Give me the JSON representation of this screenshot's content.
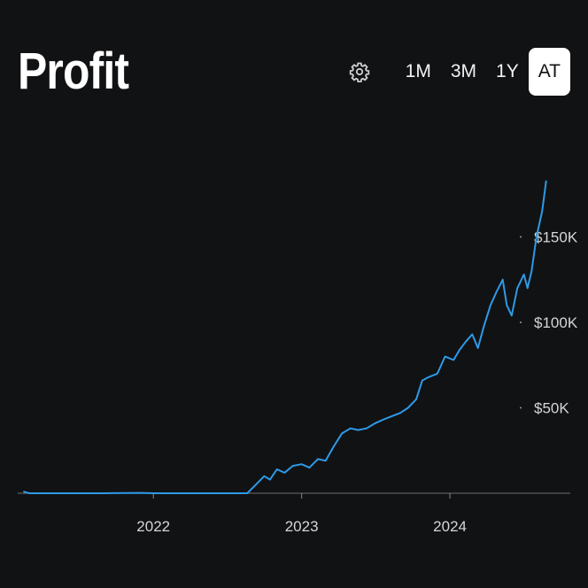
{
  "header": {
    "title": "Profit",
    "settings_icon": "gear-icon",
    "ranges": [
      {
        "label": "1M",
        "active": false
      },
      {
        "label": "3M",
        "active": false
      },
      {
        "label": "1Y",
        "active": false
      },
      {
        "label": "AT",
        "active": true
      }
    ]
  },
  "colors": {
    "background": "#111214",
    "line": "#2e9ae8",
    "baseline": "#6f6f6f",
    "text": "#ffffff"
  },
  "chart_data": {
    "type": "line",
    "title": "",
    "xlabel": "",
    "ylabel": "",
    "x_tick_labels": [
      "2022",
      "2023",
      "2024"
    ],
    "y_tick_labels": [
      "$50K",
      "$100K",
      "$150K"
    ],
    "y_ticks": [
      50000,
      100000,
      150000
    ],
    "ylim": [
      0,
      185000
    ],
    "xlim": [
      "2021-02-01",
      "2024-09-01"
    ],
    "y_axis_position": "right",
    "grid": false,
    "series": [
      {
        "color": "#2e9ae8",
        "points": [
          [
            "2021-02-15",
            1000
          ],
          [
            "2021-03-01",
            0
          ],
          [
            "2021-06-01",
            0
          ],
          [
            "2021-09-01",
            0
          ],
          [
            "2021-12-01",
            200
          ],
          [
            "2022-01-01",
            0
          ],
          [
            "2022-04-01",
            0
          ],
          [
            "2022-07-01",
            0
          ],
          [
            "2022-08-20",
            0
          ],
          [
            "2022-09-10",
            5000
          ],
          [
            "2022-10-01",
            10000
          ],
          [
            "2022-10-15",
            8000
          ],
          [
            "2022-11-01",
            14000
          ],
          [
            "2022-11-20",
            12000
          ],
          [
            "2022-12-10",
            16000
          ],
          [
            "2023-01-01",
            17000
          ],
          [
            "2023-01-20",
            15000
          ],
          [
            "2023-02-10",
            20000
          ],
          [
            "2023-03-01",
            19000
          ],
          [
            "2023-03-20",
            27000
          ],
          [
            "2023-04-10",
            35000
          ],
          [
            "2023-05-01",
            38000
          ],
          [
            "2023-05-20",
            37000
          ],
          [
            "2023-06-10",
            38000
          ],
          [
            "2023-07-01",
            41000
          ],
          [
            "2023-07-20",
            43000
          ],
          [
            "2023-08-10",
            45000
          ],
          [
            "2023-09-01",
            47000
          ],
          [
            "2023-09-20",
            50000
          ],
          [
            "2023-10-10",
            55000
          ],
          [
            "2023-10-25",
            66000
          ],
          [
            "2023-11-10",
            68000
          ],
          [
            "2023-12-01",
            70000
          ],
          [
            "2023-12-20",
            80000
          ],
          [
            "2024-01-10",
            78000
          ],
          [
            "2024-01-25",
            84000
          ],
          [
            "2024-02-10",
            89000
          ],
          [
            "2024-02-25",
            93000
          ],
          [
            "2024-03-10",
            85000
          ],
          [
            "2024-03-25",
            98000
          ],
          [
            "2024-04-10",
            110000
          ],
          [
            "2024-04-25",
            118000
          ],
          [
            "2024-05-10",
            125000
          ],
          [
            "2024-05-20",
            110000
          ],
          [
            "2024-06-01",
            104000
          ],
          [
            "2024-06-15",
            120000
          ],
          [
            "2024-07-01",
            128000
          ],
          [
            "2024-07-10",
            120000
          ],
          [
            "2024-07-20",
            130000
          ],
          [
            "2024-08-01",
            150000
          ],
          [
            "2024-08-15",
            165000
          ],
          [
            "2024-08-25",
            183000
          ]
        ]
      }
    ]
  }
}
